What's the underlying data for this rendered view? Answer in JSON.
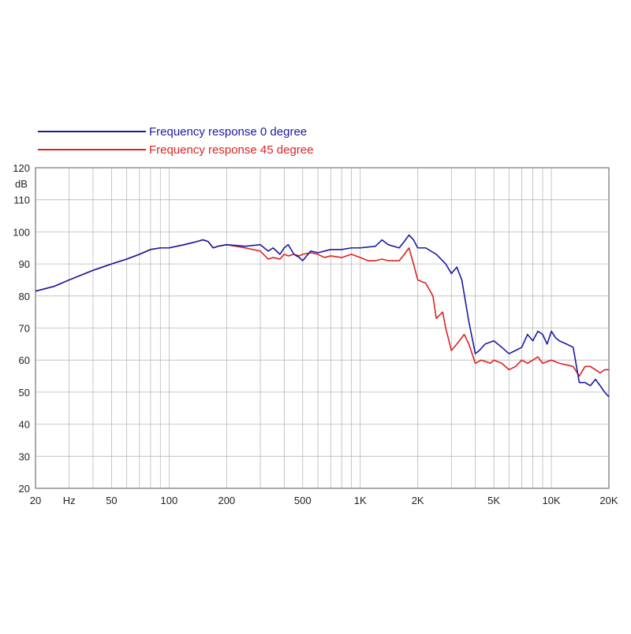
{
  "chart_data": {
    "type": "line",
    "title": "",
    "xlabel": "",
    "ylabel": "dB",
    "x_scale": "log",
    "xlim": [
      20,
      20000
    ],
    "ylim": [
      20,
      120
    ],
    "grid": true,
    "legend_position": "top-left",
    "x_tick_values": [
      20,
      30,
      50,
      100,
      200,
      500,
      1000,
      2000,
      5000,
      10000,
      20000
    ],
    "x_tick_labels": [
      "20",
      "Hz",
      "50",
      "100",
      "200",
      "500",
      "1K",
      "2K",
      "5K",
      "10K",
      "20K"
    ],
    "y_tick_values": [
      20,
      30,
      40,
      50,
      60,
      70,
      80,
      90,
      100,
      110,
      120
    ],
    "y_tick_labels": [
      "20",
      "30",
      "40",
      "50",
      "60",
      "70",
      "80",
      "90",
      "100",
      "110",
      "120"
    ],
    "series": [
      {
        "name": "Frequency response 0 degree",
        "color": "#1a1aa6",
        "points": [
          [
            20,
            81.5
          ],
          [
            25,
            83
          ],
          [
            30,
            85
          ],
          [
            40,
            88
          ],
          [
            50,
            90
          ],
          [
            60,
            91.5
          ],
          [
            70,
            93
          ],
          [
            80,
            94.5
          ],
          [
            90,
            95
          ],
          [
            100,
            95
          ],
          [
            120,
            96
          ],
          [
            140,
            97
          ],
          [
            150,
            97.5
          ],
          [
            160,
            97
          ],
          [
            170,
            95
          ],
          [
            180,
            95.5
          ],
          [
            200,
            96
          ],
          [
            250,
            95.5
          ],
          [
            300,
            96
          ],
          [
            330,
            94
          ],
          [
            350,
            95
          ],
          [
            380,
            93
          ],
          [
            400,
            95
          ],
          [
            420,
            96
          ],
          [
            450,
            93
          ],
          [
            480,
            92
          ],
          [
            500,
            91
          ],
          [
            550,
            94
          ],
          [
            600,
            93.5
          ],
          [
            650,
            94
          ],
          [
            700,
            94.5
          ],
          [
            800,
            94.5
          ],
          [
            900,
            95
          ],
          [
            1000,
            95
          ],
          [
            1200,
            95.5
          ],
          [
            1300,
            97.5
          ],
          [
            1400,
            96
          ],
          [
            1600,
            95
          ],
          [
            1700,
            97
          ],
          [
            1800,
            99
          ],
          [
            1900,
            97.5
          ],
          [
            2000,
            95
          ],
          [
            2200,
            95
          ],
          [
            2500,
            93
          ],
          [
            2800,
            90
          ],
          [
            3000,
            87
          ],
          [
            3200,
            89
          ],
          [
            3400,
            85
          ],
          [
            3700,
            72
          ],
          [
            4000,
            62
          ],
          [
            4200,
            63
          ],
          [
            4500,
            65
          ],
          [
            5000,
            66
          ],
          [
            5500,
            64
          ],
          [
            6000,
            62
          ],
          [
            6500,
            63
          ],
          [
            7000,
            64
          ],
          [
            7500,
            68
          ],
          [
            8000,
            66
          ],
          [
            8500,
            69
          ],
          [
            9000,
            68
          ],
          [
            9500,
            65
          ],
          [
            10000,
            69
          ],
          [
            10500,
            67
          ],
          [
            11000,
            66
          ],
          [
            12000,
            65
          ],
          [
            13000,
            64
          ],
          [
            14000,
            53
          ],
          [
            15000,
            53
          ],
          [
            16000,
            52
          ],
          [
            17000,
            54
          ],
          [
            18000,
            52
          ],
          [
            19000,
            50
          ],
          [
            20000,
            48.5
          ]
        ]
      },
      {
        "name": "Frequency response 45 degree",
        "color": "#dd2222",
        "points": [
          [
            20,
            81.5
          ],
          [
            25,
            83
          ],
          [
            30,
            85
          ],
          [
            40,
            88
          ],
          [
            50,
            90
          ],
          [
            60,
            91.5
          ],
          [
            70,
            93
          ],
          [
            80,
            94.5
          ],
          [
            90,
            95
          ],
          [
            100,
            95
          ],
          [
            120,
            96
          ],
          [
            140,
            97
          ],
          [
            150,
            97.5
          ],
          [
            160,
            97
          ],
          [
            170,
            95
          ],
          [
            180,
            95.5
          ],
          [
            200,
            96
          ],
          [
            250,
            95
          ],
          [
            300,
            94
          ],
          [
            330,
            91.5
          ],
          [
            350,
            92
          ],
          [
            380,
            91.5
          ],
          [
            400,
            93
          ],
          [
            420,
            92.5
          ],
          [
            450,
            93
          ],
          [
            480,
            92.5
          ],
          [
            500,
            93
          ],
          [
            550,
            93.5
          ],
          [
            600,
            93
          ],
          [
            650,
            92
          ],
          [
            700,
            92.5
          ],
          [
            800,
            92
          ],
          [
            900,
            93
          ],
          [
            1000,
            92
          ],
          [
            1100,
            91
          ],
          [
            1200,
            91
          ],
          [
            1300,
            91.5
          ],
          [
            1400,
            91
          ],
          [
            1600,
            91
          ],
          [
            1700,
            93
          ],
          [
            1800,
            95
          ],
          [
            1900,
            90
          ],
          [
            2000,
            85
          ],
          [
            2200,
            84
          ],
          [
            2400,
            80
          ],
          [
            2500,
            73
          ],
          [
            2700,
            75
          ],
          [
            2800,
            70
          ],
          [
            3000,
            63
          ],
          [
            3200,
            65
          ],
          [
            3500,
            68
          ],
          [
            3700,
            65
          ],
          [
            4000,
            59
          ],
          [
            4300,
            60
          ],
          [
            4800,
            59
          ],
          [
            5000,
            60
          ],
          [
            5500,
            59
          ],
          [
            6000,
            57
          ],
          [
            6500,
            58
          ],
          [
            7000,
            60
          ],
          [
            7500,
            59
          ],
          [
            8000,
            60
          ],
          [
            8500,
            61
          ],
          [
            9000,
            59
          ],
          [
            10000,
            60
          ],
          [
            11000,
            59
          ],
          [
            12000,
            58.5
          ],
          [
            13000,
            58
          ],
          [
            14000,
            55
          ],
          [
            15000,
            58
          ],
          [
            16000,
            58
          ],
          [
            17000,
            57
          ],
          [
            18000,
            56
          ],
          [
            19000,
            57
          ],
          [
            20000,
            57
          ]
        ]
      }
    ]
  }
}
